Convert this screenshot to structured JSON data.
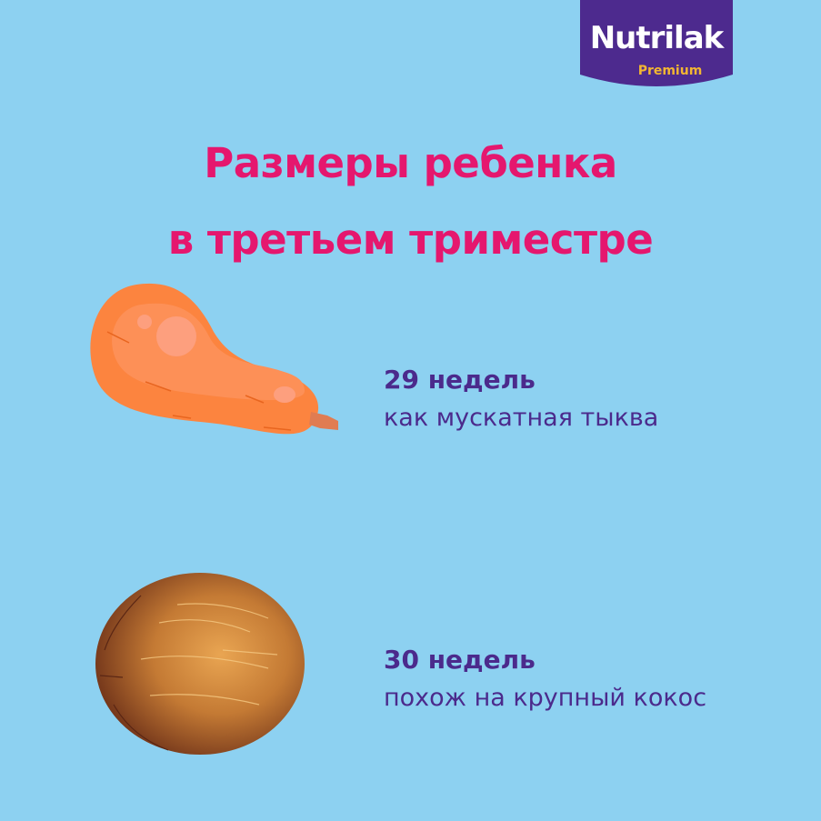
{
  "brand": {
    "name": "Nutrilak",
    "sub": "Premium",
    "color": "#4d2a8e",
    "sub_color": "#f2b632"
  },
  "title": {
    "line1": "Размеры ребенка",
    "line2": "в третьем триместре",
    "color": "#e5176e"
  },
  "items": [
    {
      "weeks": "29 недель",
      "desc": "как мускатная тыква",
      "icon": "butternut-squash"
    },
    {
      "weeks": "30 недель",
      "desc": "похож на крупный кокос",
      "icon": "coconut"
    }
  ],
  "colors": {
    "background": "#8dd1f1",
    "text": "#4b2a8c"
  }
}
